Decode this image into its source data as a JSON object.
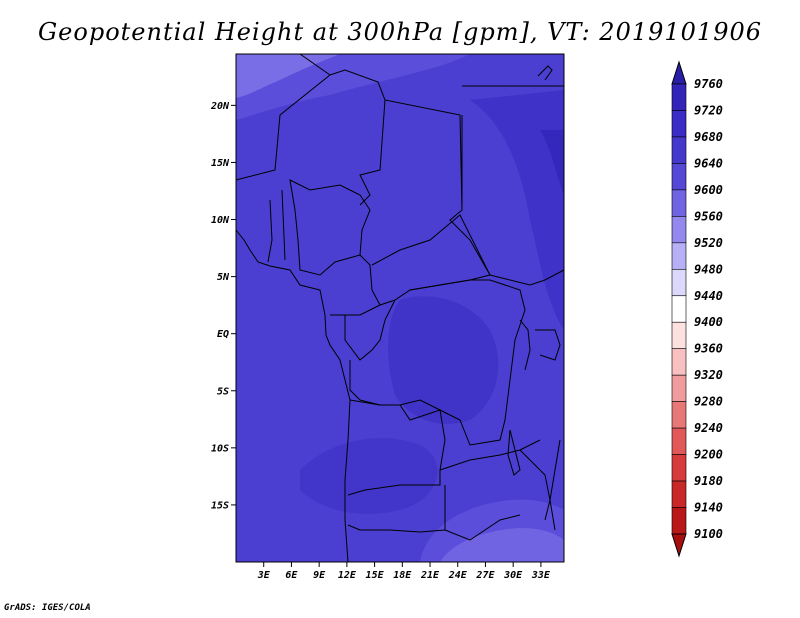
{
  "title": "Geopotential Height at 300hPa [gpm], VT: 2019101906",
  "footer": "GrADS: IGES/COLA",
  "map": {
    "lon_range": [
      0,
      35.5
    ],
    "lat_range": [
      -20,
      24.5
    ],
    "lat_ticks": [
      {
        "value": 20,
        "label": "20N"
      },
      {
        "value": 15,
        "label": "15N"
      },
      {
        "value": 10,
        "label": "10N"
      },
      {
        "value": 5,
        "label": "5N"
      },
      {
        "value": 0,
        "label": "EQ"
      },
      {
        "value": -5,
        "label": "5S"
      },
      {
        "value": -10,
        "label": "10S"
      },
      {
        "value": -15,
        "label": "15S"
      }
    ],
    "lon_ticks": [
      {
        "value": 3,
        "label": "3E"
      },
      {
        "value": 6,
        "label": "6E"
      },
      {
        "value": 9,
        "label": "9E"
      },
      {
        "value": 12,
        "label": "12E"
      },
      {
        "value": 15,
        "label": "15E"
      },
      {
        "value": 18,
        "label": "18E"
      },
      {
        "value": 21,
        "label": "21E"
      },
      {
        "value": 24,
        "label": "24E"
      },
      {
        "value": 27,
        "label": "27E"
      },
      {
        "value": 30,
        "label": "30E"
      },
      {
        "value": 33,
        "label": "33E"
      }
    ],
    "base_color": "#4a3fd0"
  },
  "colorbar": {
    "levels": [
      "9760",
      "9720",
      "9680",
      "9640",
      "9600",
      "9560",
      "9520",
      "9480",
      "9440",
      "9400",
      "9360",
      "9320",
      "9280",
      "9240",
      "9200",
      "9180",
      "9140",
      "9100"
    ],
    "colors": [
      "#2a1ea8",
      "#3224b8",
      "#3a2cc4",
      "#4538cc",
      "#5548d6",
      "#7064e2",
      "#9488ee",
      "#b8b0f6",
      "#dcd8fc",
      "#ffffff",
      "#fde0e0",
      "#f8c0c0",
      "#f09c9c",
      "#e87878",
      "#e05858",
      "#d63c3c",
      "#c82828",
      "#b81818",
      "#a80e0e"
    ]
  }
}
